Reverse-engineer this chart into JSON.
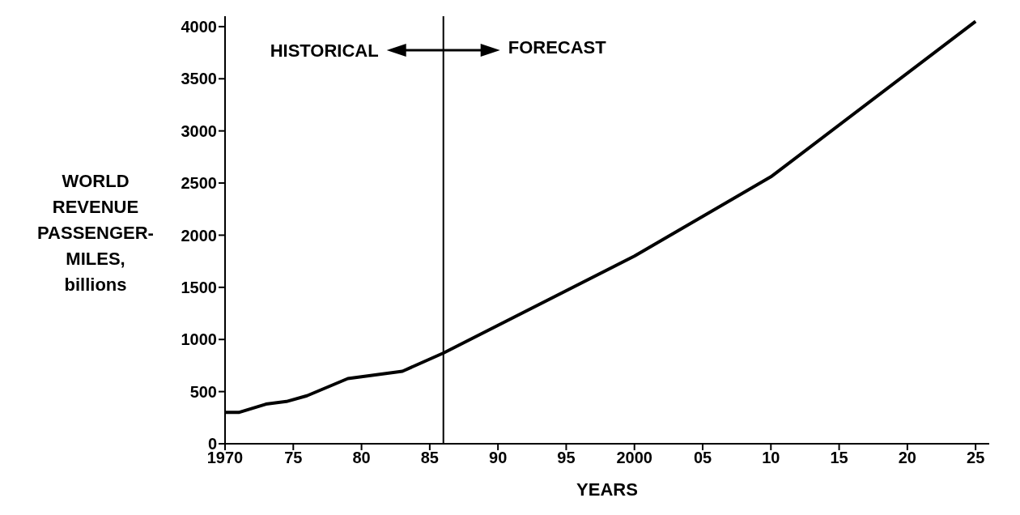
{
  "chart_data": {
    "type": "line",
    "xlabel": "YEARS",
    "ylabel": "WORLD\nREVENUE\nPASSENGER-\nMILES,\nbillions",
    "x": [
      1970,
      1971,
      1973,
      1974.5,
      1976,
      1979,
      1983,
      1986,
      2000,
      2010,
      2025
    ],
    "series": [
      {
        "color": "#000000",
        "values": [
          300,
          300,
          380,
          405,
          460,
          625,
          695,
          870,
          1800,
          2560,
          4050
        ]
      }
    ],
    "xlim": [
      1970,
      2026
    ],
    "xticks": [
      {
        "value": 1970,
        "label": "1970"
      },
      {
        "value": 1975,
        "label": "75"
      },
      {
        "value": 1980,
        "label": "80"
      },
      {
        "value": 1985,
        "label": "85"
      },
      {
        "value": 1990,
        "label": "90"
      },
      {
        "value": 1995,
        "label": "95"
      },
      {
        "value": 2000,
        "label": "2000"
      },
      {
        "value": 2005,
        "label": "05"
      },
      {
        "value": 2010,
        "label": "10"
      },
      {
        "value": 2015,
        "label": "15"
      },
      {
        "value": 2020,
        "label": "20"
      },
      {
        "value": 2025,
        "label": "25"
      }
    ],
    "ylim": [
      0,
      4100
    ],
    "yticks": [
      0,
      500,
      1000,
      1500,
      2000,
      2500,
      3000,
      3500,
      4000
    ],
    "ref_lines": [
      {
        "axis": "x",
        "value": 1986,
        "color": "#000000"
      }
    ],
    "annotations": [
      "HISTORICAL",
      "FORECAST"
    ],
    "grid": false,
    "legend": false,
    "marker": "none",
    "line_style": "solid"
  }
}
